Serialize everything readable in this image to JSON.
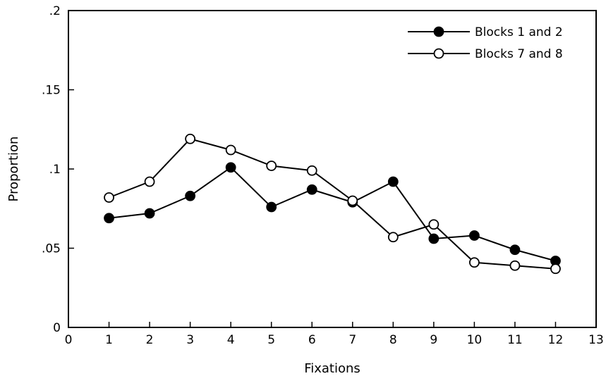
{
  "colors": {
    "axis": "#000000",
    "line": "#000000",
    "filled_marker": "#000000",
    "open_marker_fill": "#ffffff"
  },
  "chart_data": {
    "type": "line",
    "title": "",
    "xlabel": "Fixations",
    "ylabel": "Proportion",
    "xlim": [
      0,
      13
    ],
    "ylim": [
      0,
      0.2
    ],
    "xticks": [
      0,
      1,
      2,
      3,
      4,
      5,
      6,
      7,
      8,
      9,
      10,
      11,
      12,
      13
    ],
    "xtick_labels": [
      "0",
      "1",
      "2",
      "3",
      "4",
      "5",
      "6",
      "7",
      "8",
      "9",
      "10",
      "11",
      "12",
      "13"
    ],
    "yticks": [
      0,
      0.05,
      0.1,
      0.15,
      0.2
    ],
    "ytick_labels": [
      "0",
      ".05",
      ".1",
      ".15",
      ".2"
    ],
    "grid": false,
    "legend_position": "top-right",
    "x": [
      1,
      2,
      3,
      4,
      5,
      6,
      7,
      8,
      9,
      10,
      11,
      12
    ],
    "series": [
      {
        "name": "Blocks 1 and 2",
        "marker": "filled-circle",
        "values": [
          0.069,
          0.072,
          0.083,
          0.101,
          0.076,
          0.087,
          0.079,
          0.092,
          0.056,
          0.058,
          0.049,
          0.042
        ]
      },
      {
        "name": "Blocks 7 and 8",
        "marker": "open-circle",
        "values": [
          0.082,
          0.092,
          0.119,
          0.112,
          0.102,
          0.099,
          0.08,
          0.057,
          0.065,
          0.041,
          0.039,
          0.037
        ]
      }
    ]
  }
}
